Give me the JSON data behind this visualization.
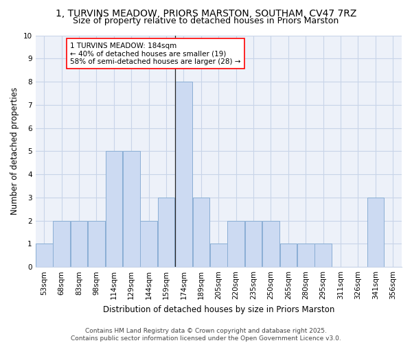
{
  "title": "1, TURVINS MEADOW, PRIORS MARSTON, SOUTHAM, CV47 7RZ",
  "subtitle": "Size of property relative to detached houses in Priors Marston",
  "xlabel": "Distribution of detached houses by size in Priors Marston",
  "ylabel": "Number of detached properties",
  "categories": [
    "53sqm",
    "68sqm",
    "83sqm",
    "98sqm",
    "114sqm",
    "129sqm",
    "144sqm",
    "159sqm",
    "174sqm",
    "189sqm",
    "205sqm",
    "220sqm",
    "235sqm",
    "250sqm",
    "265sqm",
    "280sqm",
    "295sqm",
    "311sqm",
    "326sqm",
    "341sqm",
    "356sqm"
  ],
  "values": [
    1,
    2,
    2,
    2,
    5,
    5,
    2,
    3,
    8,
    3,
    1,
    2,
    2,
    2,
    1,
    1,
    1,
    0,
    0,
    3,
    0
  ],
  "bar_color": "#ccdaf2",
  "bar_edge_color": "#8aaed4",
  "highlight_line_index": 8,
  "annotation_box_text": "1 TURVINS MEADOW: 184sqm\n← 40% of detached houses are smaller (19)\n58% of semi-detached houses are larger (28) →",
  "ylim": [
    0,
    10
  ],
  "yticks": [
    0,
    1,
    2,
    3,
    4,
    5,
    6,
    7,
    8,
    9,
    10
  ],
  "grid_color": "#c8d4e8",
  "bg_color": "#edf1f9",
  "footer": "Contains HM Land Registry data © Crown copyright and database right 2025.\nContains public sector information licensed under the Open Government Licence v3.0.",
  "title_fontsize": 10,
  "subtitle_fontsize": 9,
  "axis_label_fontsize": 8.5,
  "tick_fontsize": 7.5,
  "annotation_fontsize": 7.5,
  "footer_fontsize": 6.5
}
